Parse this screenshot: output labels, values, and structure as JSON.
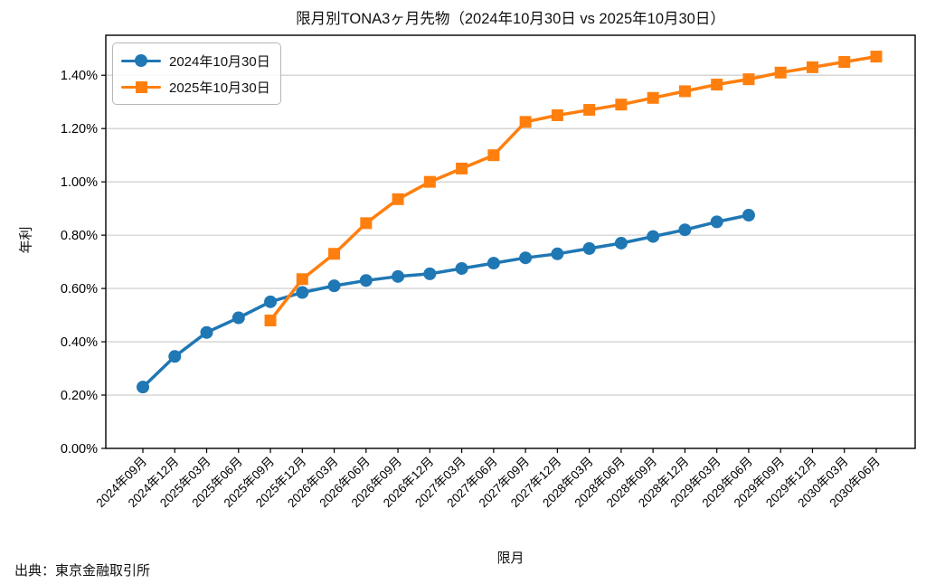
{
  "page": {
    "source": "出典：東京金融取引所"
  },
  "chart_data": {
    "type": "line",
    "title": "限月別TONA3ヶ月先物（2024年10月30日 vs 2025年10月30日）",
    "xlabel": "限月",
    "ylabel": "年利",
    "categories": [
      "2024年09月",
      "2024年12月",
      "2025年03月",
      "2025年06月",
      "2025年09月",
      "2025年12月",
      "2026年03月",
      "2026年06月",
      "2026年09月",
      "2026年12月",
      "2027年03月",
      "2027年06月",
      "2027年09月",
      "2027年12月",
      "2028年03月",
      "2028年06月",
      "2028年09月",
      "2028年12月",
      "2029年03月",
      "2029年06月",
      "2029年09月",
      "2029年12月",
      "2030年03月",
      "2030年06月"
    ],
    "series": [
      {
        "name": "2024年10月30日",
        "color": "#1f77b4",
        "marker": "circle",
        "start_index": 0,
        "values": [
          0.23,
          0.345,
          0.435,
          0.49,
          0.55,
          0.585,
          0.61,
          0.63,
          0.645,
          0.655,
          0.675,
          0.695,
          0.715,
          0.73,
          0.75,
          0.77,
          0.795,
          0.82,
          0.85,
          0.875
        ]
      },
      {
        "name": "2025年10月30日",
        "color": "#ff7f0e",
        "marker": "square",
        "start_index": 4,
        "values": [
          0.48,
          0.635,
          0.73,
          0.845,
          0.935,
          1.0,
          1.05,
          1.1,
          1.225,
          1.25,
          1.27,
          1.29,
          1.315,
          1.34,
          1.365,
          1.385,
          1.41,
          1.43,
          1.45,
          1.47
        ]
      }
    ],
    "ylim": [
      0,
      1.55
    ],
    "yticks": [
      0,
      0.2,
      0.4,
      0.6,
      0.8,
      1.0,
      1.2,
      1.4
    ],
    "ytick_labels": [
      "0.00%",
      "0.20%",
      "0.40%",
      "0.60%",
      "0.80%",
      "1.00%",
      "1.20%",
      "1.40%"
    ],
    "grid": "horizontal",
    "legend_position": "upper-left",
    "colors": {
      "grid": "#c9c9c9",
      "axis": "#000000",
      "background": "#ffffff"
    }
  }
}
